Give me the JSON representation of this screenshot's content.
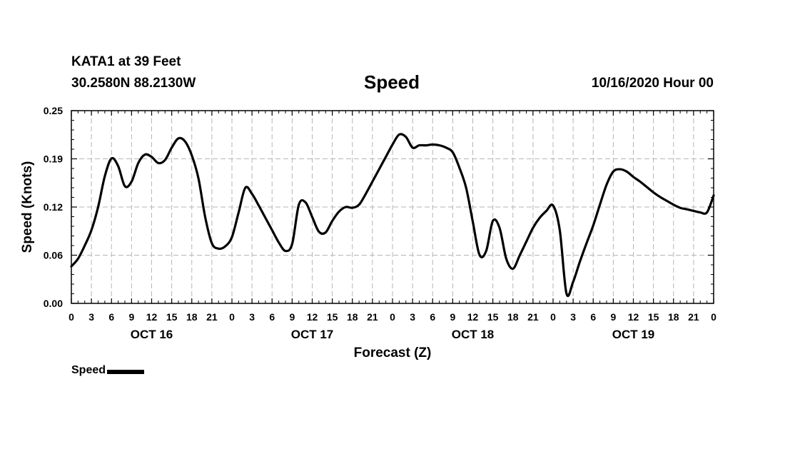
{
  "header": {
    "station": "KATA1 at 39 Feet",
    "location": "30.2580N 88.2130W",
    "title": "Speed",
    "forecast_time": "10/16/2020 Hour 00"
  },
  "legend": {
    "label": "Speed",
    "color": "#000000"
  },
  "chart_data": {
    "type": "line",
    "title": "Speed",
    "xlabel": "Forecast (Z)",
    "ylabel": "Speed (Knots)",
    "ylim": [
      0,
      0.25
    ],
    "xlim": [
      0,
      96
    ],
    "yticks": [
      "0.00",
      "0.06",
      "0.12",
      "0.19",
      "0.25"
    ],
    "xtick_labels": [
      "0",
      "3",
      "6",
      "9",
      "12",
      "15",
      "18",
      "21",
      "0",
      "3",
      "6",
      "9",
      "12",
      "15",
      "18",
      "21",
      "0",
      "3",
      "6",
      "9",
      "12",
      "15",
      "18",
      "21",
      "0",
      "3",
      "6",
      "9",
      "12",
      "15",
      "18",
      "21",
      "0"
    ],
    "day_labels": [
      {
        "label": "OCT 16",
        "hour": 12
      },
      {
        "label": "OCT 17",
        "hour": 36
      },
      {
        "label": "OCT 18",
        "hour": 60
      },
      {
        "label": "OCT 19",
        "hour": 84
      }
    ],
    "grid": true,
    "legend_position": "bottom-left",
    "series": [
      {
        "name": "Speed",
        "color": "#000000",
        "x": [
          0,
          1,
          2,
          3,
          4,
          5,
          6,
          7,
          8,
          9,
          10,
          11,
          12,
          13,
          14,
          15,
          16,
          17,
          18,
          19,
          20,
          21,
          22,
          23,
          24,
          25,
          26,
          27,
          28,
          29,
          30,
          31,
          32,
          33,
          34,
          35,
          36,
          37,
          38,
          39,
          40,
          41,
          42,
          43,
          44,
          45,
          46,
          47,
          48,
          49,
          50,
          51,
          52,
          53,
          54,
          55,
          56,
          57,
          58,
          59,
          60,
          61,
          62,
          63,
          64,
          65,
          66,
          67,
          68,
          69,
          70,
          71,
          72,
          73,
          74,
          75,
          76,
          77,
          78,
          79,
          80,
          81,
          82,
          83,
          84,
          85,
          86,
          87,
          88,
          89,
          90,
          91,
          92,
          93,
          94,
          95,
          96
        ],
        "y": [
          0.048,
          0.058,
          0.075,
          0.095,
          0.125,
          0.165,
          0.188,
          0.178,
          0.152,
          0.158,
          0.182,
          0.193,
          0.19,
          0.182,
          0.186,
          0.202,
          0.214,
          0.21,
          0.192,
          0.162,
          0.112,
          0.078,
          0.071,
          0.074,
          0.086,
          0.118,
          0.15,
          0.142,
          0.127,
          0.111,
          0.095,
          0.079,
          0.068,
          0.077,
          0.128,
          0.131,
          0.112,
          0.093,
          0.092,
          0.107,
          0.119,
          0.125,
          0.124,
          0.128,
          0.142,
          0.158,
          0.174,
          0.19,
          0.206,
          0.219,
          0.216,
          0.202,
          0.205,
          0.205,
          0.206,
          0.205,
          0.202,
          0.196,
          0.176,
          0.15,
          0.106,
          0.063,
          0.068,
          0.107,
          0.098,
          0.058,
          0.045,
          0.062,
          0.08,
          0.098,
          0.111,
          0.12,
          0.127,
          0.095,
          0.013,
          0.028,
          0.054,
          0.078,
          0.101,
          0.128,
          0.154,
          0.171,
          0.174,
          0.171,
          0.164,
          0.158,
          0.151,
          0.144,
          0.138,
          0.133,
          0.128,
          0.124,
          0.122,
          0.12,
          0.118,
          0.118,
          0.14
        ]
      }
    ]
  }
}
